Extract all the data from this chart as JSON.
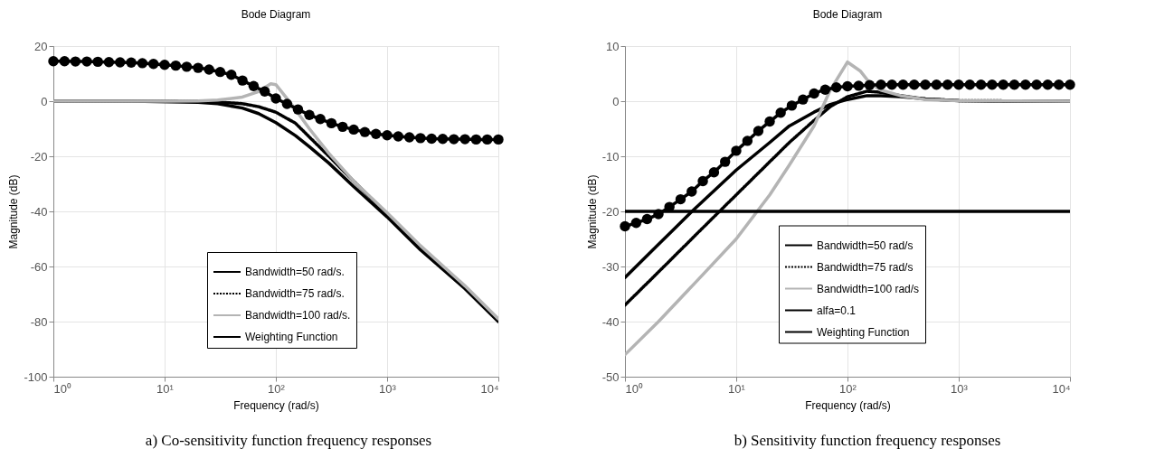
{
  "chart_data": [
    {
      "type": "line",
      "title": "Bode Diagram",
      "xlabel": "Frequency  (rad/s)",
      "ylabel": "Magnitude (dB)",
      "log": "x",
      "grid": true,
      "legend": "bottom right",
      "xlim": [
        1,
        10000
      ],
      "xticks": [
        {
          "value": 1,
          "label": "10⁰"
        },
        {
          "value": 10,
          "label": "10¹"
        },
        {
          "value": 100,
          "label": "10²"
        },
        {
          "value": 1000,
          "label": "10³"
        },
        {
          "value": 10000,
          "label": "10⁴"
        }
      ],
      "ylim": [
        -100,
        20
      ],
      "yticks": [
        -100,
        -80,
        -60,
        -40,
        -20,
        0,
        20
      ],
      "annotations": [
        "a) Co-sensitivity function frequency responses"
      ],
      "series": [
        {
          "name": "Bandwidth=50 rad/s.",
          "color": "#000000",
          "line_style": "solid",
          "x": [
            1,
            2,
            5,
            20,
            30,
            50,
            70,
            100,
            150,
            200,
            300,
            500,
            1000,
            2000,
            5000,
            10000
          ],
          "values": [
            0,
            0,
            0,
            -0.4,
            -0.9,
            -2.5,
            -4.5,
            -7.8,
            -12.5,
            -16.5,
            -22.5,
            -31,
            -42,
            -54,
            -68,
            -80
          ]
        },
        {
          "name": "Bandwidth=75 rad/s.",
          "color": "#000000",
          "line_style": "dotted",
          "x": [
            1,
            2,
            5,
            10,
            20,
            30,
            50,
            70,
            100,
            150,
            200,
            300,
            500,
            1000,
            2000,
            5000,
            10000
          ],
          "values": [
            0,
            0,
            0,
            0,
            -0.1,
            -0.3,
            -0.9,
            -2,
            -4,
            -8,
            -13,
            -20,
            -29,
            -41,
            -53,
            -67.5,
            -79.5
          ]
        },
        {
          "name": "Bandwidth=100 rad/s.",
          "color": "#b4b4b4",
          "line_style": "solid",
          "x": [
            1,
            2,
            5,
            10,
            20,
            30,
            50,
            70,
            90,
            100,
            120,
            150,
            200,
            300,
            500,
            1000,
            2000,
            5000,
            10000
          ],
          "values": [
            0,
            0,
            0,
            0,
            0.1,
            0.4,
            1.5,
            3.5,
            6.3,
            6,
            2,
            -3,
            -10,
            -19,
            -29,
            -40.5,
            -52.5,
            -67,
            -79
          ]
        },
        {
          "name": "Weighting Function",
          "color": "#000000",
          "line_style": "solid",
          "marker": "circle",
          "x": [
            1,
            1.26,
            1.58,
            2,
            2.51,
            3.16,
            3.98,
            5.01,
            6.31,
            7.94,
            10,
            12.6,
            15.8,
            20,
            25.1,
            31.6,
            39.8,
            50.1,
            63.1,
            79.4,
            100,
            126,
            158,
            200,
            251,
            316,
            398,
            501,
            631,
            794,
            1000,
            1259,
            1585,
            1995,
            2512,
            3162,
            3981,
            5012,
            6310,
            7943,
            10000
          ],
          "values": [
            14.5,
            14.5,
            14.4,
            14.4,
            14.3,
            14.2,
            14.1,
            14,
            13.8,
            13.5,
            13.2,
            12.9,
            12.5,
            12.1,
            11.5,
            10.6,
            9.6,
            7.5,
            5.5,
            3.5,
            1,
            -1,
            -3,
            -5,
            -6.5,
            -8,
            -9.3,
            -10.3,
            -11.2,
            -11.9,
            -12.4,
            -12.8,
            -13.1,
            -13.4,
            -13.6,
            -13.7,
            -13.8,
            -13.8,
            -13.9,
            -13.9,
            -13.9
          ]
        }
      ]
    },
    {
      "type": "line",
      "title": "Bode Diagram",
      "xlabel": "Frequency  (rad/s)",
      "ylabel": "Magnitude (dB)",
      "log": "x",
      "grid": true,
      "legend": "bottom right",
      "xlim": [
        1,
        10000
      ],
      "xticks": [
        {
          "value": 1,
          "label": "10⁰"
        },
        {
          "value": 10,
          "label": "10¹"
        },
        {
          "value": 100,
          "label": "10²"
        },
        {
          "value": 1000,
          "label": "10³"
        },
        {
          "value": 10000,
          "label": "10⁴"
        }
      ],
      "ylim": [
        -50,
        10
      ],
      "yticks": [
        -50,
        -40,
        -30,
        -20,
        -10,
        0,
        10
      ],
      "annotations": [
        "b) Sensitivity function frequency responses"
      ],
      "series": [
        {
          "name": "Bandwidth=50 rad/s",
          "color": "#000000",
          "line_style": "solid",
          "x": [
            1,
            2,
            4,
            10,
            20,
            30,
            50,
            70,
            100,
            150,
            200,
            300,
            500,
            1000,
            2000,
            10000
          ],
          "values": [
            -32,
            -26,
            -20,
            -12.5,
            -7.5,
            -4.5,
            -2,
            -0.6,
            0.3,
            1,
            1,
            0.8,
            0.4,
            0.1,
            0,
            0
          ]
        },
        {
          "name": "Bandwidth=75 rad/s",
          "color": "#000000",
          "line_style": "dotted",
          "x": [
            1,
            2,
            5,
            10,
            20,
            30,
            50,
            70,
            100,
            150,
            200,
            300,
            500,
            1000,
            10000
          ],
          "values": [
            -37,
            -31,
            -23,
            -17,
            -11,
            -7.5,
            -3.5,
            -1,
            0.8,
            1.8,
            1.6,
            1,
            0.4,
            0.1,
            0
          ]
        },
        {
          "name": "Bandwidth=100 rad/s",
          "color": "#b4b4b4",
          "line_style": "solid",
          "x": [
            1,
            2,
            5,
            10,
            20,
            30,
            50,
            70,
            100,
            130,
            160,
            200,
            300,
            500,
            1000,
            10000
          ],
          "values": [
            -46,
            -40,
            -31.5,
            -25,
            -17,
            -11.6,
            -4.5,
            2,
            7.1,
            5.5,
            3.2,
            2,
            1,
            0.3,
            0.1,
            0
          ]
        },
        {
          "name": "alfa=0.1",
          "color": "#000000",
          "line_style": "solid",
          "x": [
            1,
            10000
          ],
          "values": [
            -20,
            -20
          ]
        },
        {
          "name": "Weighting Function",
          "color": "#000000",
          "line_style": "solid",
          "marker": "circle",
          "x": [
            1,
            1.26,
            1.58,
            2,
            2.51,
            3.16,
            3.98,
            5.01,
            6.31,
            7.94,
            10,
            12.6,
            15.8,
            20,
            25.1,
            31.6,
            39.8,
            50.1,
            63.1,
            79.4,
            100,
            126,
            158,
            200,
            251,
            316,
            398,
            501,
            631,
            794,
            1000,
            1259,
            1585,
            1995,
            2512,
            3162,
            3981,
            5012,
            6310,
            7943,
            10000
          ],
          "values": [
            -22.7,
            -22.1,
            -21.4,
            -20.5,
            -19.2,
            -17.8,
            -16.4,
            -14.5,
            -12.9,
            -11,
            -9,
            -7.2,
            -5.4,
            -3.7,
            -2.1,
            -0.8,
            0.3,
            1.4,
            2.1,
            2.5,
            2.7,
            2.8,
            2.9,
            3,
            3,
            3,
            3,
            3,
            3,
            3,
            3,
            3,
            3,
            3,
            3,
            3,
            3,
            3,
            3,
            3,
            3
          ]
        }
      ]
    }
  ]
}
